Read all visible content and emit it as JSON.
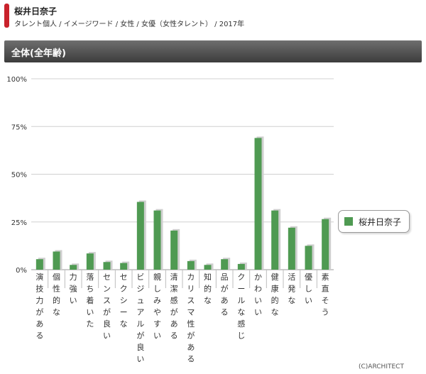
{
  "header": {
    "name": "桜井日奈子",
    "breadcrumb": "タレント個人 / イメージワード / 女性 / 女優（女性タレント） / 2017年"
  },
  "section": {
    "title": "全体(全年齢)"
  },
  "colors": {
    "bar": "#4f9a52",
    "bar_shadow": "#cfcfcf",
    "accent": "#c9222b"
  },
  "copyright": "(C)ARCHITECT",
  "chart_data": {
    "type": "bar",
    "title": "",
    "xlabel": "",
    "ylabel": "",
    "ylim": [
      0,
      100
    ],
    "yticks": [
      "0%",
      "25%",
      "50%",
      "75%",
      "100%"
    ],
    "categories": [
      "演技力がある",
      "個性的な",
      "力強い",
      "落ち着いた",
      "センスが良い",
      "セクシーな",
      "ビジュアルが良い",
      "親しみやすい",
      "清潔感がある",
      "カリスマ性がある",
      "知的な",
      "品がある",
      "クールな感じ",
      "かわいい",
      "健康的な",
      "活発な",
      "優しい",
      "素直そう"
    ],
    "series": [
      {
        "name": "桜井日奈子",
        "values": [
          5.5,
          9.5,
          2.5,
          8.5,
          4,
          3.5,
          35.5,
          31,
          20.5,
          4.5,
          2.5,
          5.5,
          3,
          69,
          31,
          22,
          12.5,
          26.5
        ]
      }
    ]
  }
}
